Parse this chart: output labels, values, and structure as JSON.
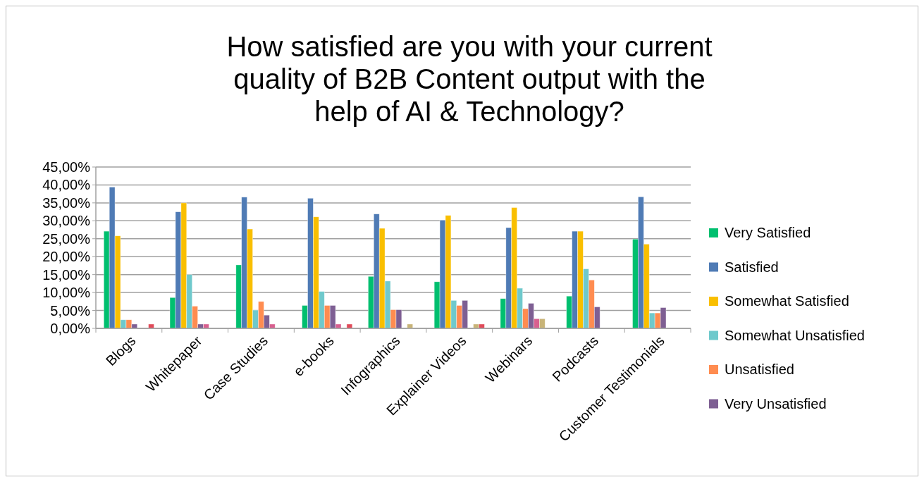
{
  "chart_data": {
    "type": "bar",
    "title": "How satisfied are you with your current quality of B2B Content output with the help of AI & Technology?",
    "categories": [
      "Blogs",
      "Whitepaper",
      "Case Studies",
      "e-books",
      "Infographics",
      "Explainer Videos",
      "Webinars",
      "Podcasts",
      "Customer Testimonials"
    ],
    "series": [
      {
        "name": "Very Satisfied",
        "color": "#00bf6f",
        "values": [
          27.1,
          8.6,
          17.7,
          6.4,
          14.5,
          13.0,
          8.3,
          9.0,
          24.9
        ]
      },
      {
        "name": "Satisfied",
        "color": "#4f7bb5",
        "values": [
          39.4,
          32.5,
          36.6,
          36.3,
          31.9,
          30.2,
          28.1,
          27.1,
          36.7
        ]
      },
      {
        "name": "Somewhat Satisfied",
        "color": "#f9bf00",
        "values": [
          25.8,
          35.0,
          27.7,
          31.1,
          27.9,
          31.5,
          33.7,
          27.1,
          23.5
        ]
      },
      {
        "name": "Somewhat Unsatisfied",
        "color": "#6fc9cc",
        "values": [
          2.4,
          15.0,
          5.1,
          10.3,
          13.2,
          7.8,
          11.2,
          16.6,
          4.3
        ]
      },
      {
        "name": "Unsatisfied",
        "color": "#ff8c50",
        "values": [
          2.4,
          6.2,
          7.5,
          6.4,
          5.2,
          6.4,
          5.5,
          13.5,
          4.3
        ]
      },
      {
        "name": "Very Unsatisfied",
        "color": "#7e5f93",
        "values": [
          1.2,
          1.2,
          3.7,
          6.4,
          5.2,
          7.8,
          7.0,
          6.0,
          5.8
        ]
      },
      {
        "color": "#d8608f",
        "values": [
          null,
          1.2,
          1.2,
          1.2,
          null,
          null,
          2.7,
          null,
          null
        ]
      },
      {
        "color": "#c8b478",
        "values": [
          null,
          null,
          null,
          null,
          1.2,
          1.2,
          2.7,
          null,
          null
        ]
      },
      {
        "color": "#e04b5a",
        "values": [
          1.2,
          null,
          null,
          1.2,
          null,
          1.2,
          null,
          null,
          null
        ]
      }
    ],
    "ylim": [
      0,
      45
    ],
    "yticks": [
      {
        "value": 0,
        "label": "0,00%"
      },
      {
        "value": 5,
        "label": "5,00%"
      },
      {
        "value": 10,
        "label": "10,00%"
      },
      {
        "value": 15,
        "label": "15,00%"
      },
      {
        "value": 20,
        "label": "20,00%"
      },
      {
        "value": 25,
        "label": "25,00%"
      },
      {
        "value": 30,
        "label": "30,00%"
      },
      {
        "value": 35,
        "label": "35,00%"
      },
      {
        "value": 40,
        "label": "40,00%"
      },
      {
        "value": 45,
        "label": "45,00%"
      }
    ],
    "grid": "y",
    "legend": "right"
  }
}
